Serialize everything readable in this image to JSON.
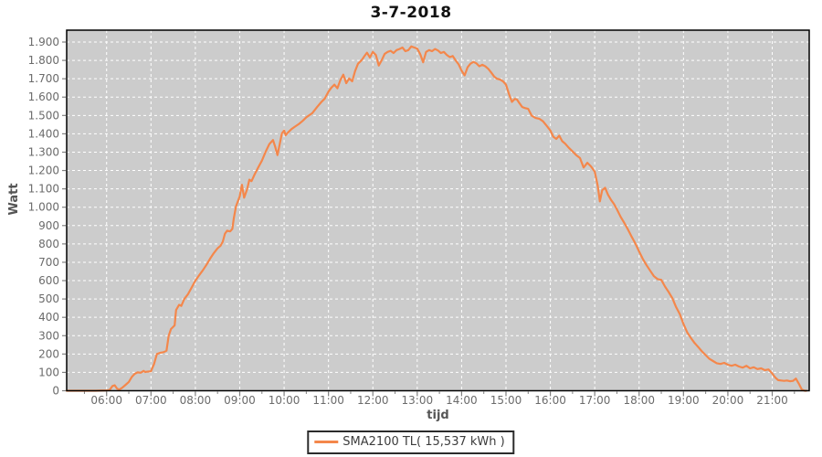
{
  "chart_data": {
    "type": "line",
    "title": "3-7-2018",
    "xlabel": "tijd",
    "ylabel": "Watt",
    "grid": true,
    "grid_style": "white dashed on gray plot background",
    "legend_position": "bottom-center",
    "colors": {
      "plot_background": "#cccccc",
      "grid_line": "#ffffff",
      "series_line": "#f4874b",
      "plot_border": "#000000",
      "tick_mark": "#808080",
      "tick_label": "#6b6b6b"
    },
    "y_max_value": 1900,
    "y_axis_top_headroom": 1965,
    "y_ticks": [
      0,
      100,
      200,
      300,
      400,
      500,
      600,
      700,
      800,
      900,
      1000,
      1100,
      1200,
      1300,
      1400,
      1500,
      1600,
      1700,
      1800,
      1900
    ],
    "y_tick_labels": [
      "0",
      "100",
      "200",
      "300",
      "400",
      "500",
      "600",
      "700",
      "800",
      "900",
      "1.000",
      "1.100",
      "1.200",
      "1.300",
      "1.400",
      "1.500",
      "1.600",
      "1.700",
      "1.800",
      "1.900"
    ],
    "x_tick_minutes": [
      360,
      420,
      480,
      540,
      600,
      660,
      720,
      780,
      840,
      900,
      960,
      1020,
      1080,
      1140,
      1200,
      1260
    ],
    "x_tick_labels": [
      "06:00",
      "07:00",
      "08:00",
      "09:00",
      "10:00",
      "11:00",
      "12:00",
      "13:00",
      "14:00",
      "15:00",
      "16:00",
      "17:00",
      "18:00",
      "19:00",
      "20:00",
      "21:00"
    ],
    "x_range_minutes": [
      306,
      1310
    ],
    "legend": {
      "entries": [
        {
          "label": "SMA2100 TL( 15,537 kWh )",
          "color": "#f4874b"
        }
      ]
    },
    "series": [
      {
        "name": "SMA2100 TL( 15,537 kWh )",
        "color": "#f4874b",
        "points": [
          [
            306,
            0
          ],
          [
            330,
            0
          ],
          [
            345,
            0
          ],
          [
            360,
            2
          ],
          [
            364,
            4
          ],
          [
            368,
            26
          ],
          [
            371,
            30
          ],
          [
            374,
            12
          ],
          [
            377,
            6
          ],
          [
            381,
            16
          ],
          [
            385,
            30
          ],
          [
            390,
            48
          ],
          [
            394,
            75
          ],
          [
            398,
            92
          ],
          [
            402,
            100
          ],
          [
            406,
            98
          ],
          [
            410,
            108
          ],
          [
            412,
            102
          ],
          [
            415,
            104
          ],
          [
            420,
            106
          ],
          [
            424,
            145
          ],
          [
            428,
            200
          ],
          [
            432,
            206
          ],
          [
            437,
            210
          ],
          [
            441,
            218
          ],
          [
            444,
            300
          ],
          [
            447,
            336
          ],
          [
            450,
            348
          ],
          [
            452,
            356
          ],
          [
            454,
            440
          ],
          [
            458,
            468
          ],
          [
            461,
            462
          ],
          [
            465,
            500
          ],
          [
            470,
            526
          ],
          [
            475,
            562
          ],
          [
            480,
            600
          ],
          [
            485,
            628
          ],
          [
            490,
            656
          ],
          [
            495,
            686
          ],
          [
            500,
            720
          ],
          [
            505,
            750
          ],
          [
            510,
            776
          ],
          [
            514,
            790
          ],
          [
            517,
            812
          ],
          [
            520,
            856
          ],
          [
            523,
            872
          ],
          [
            527,
            868
          ],
          [
            530,
            882
          ],
          [
            532,
            940
          ],
          [
            535,
            1005
          ],
          [
            540,
            1060
          ],
          [
            543,
            1122
          ],
          [
            546,
            1052
          ],
          [
            550,
            1098
          ],
          [
            553,
            1150
          ],
          [
            556,
            1142
          ],
          [
            560,
            1178
          ],
          [
            565,
            1216
          ],
          [
            570,
            1254
          ],
          [
            575,
            1302
          ],
          [
            580,
            1344
          ],
          [
            585,
            1366
          ],
          [
            588,
            1328
          ],
          [
            591,
            1284
          ],
          [
            594,
            1342
          ],
          [
            597,
            1402
          ],
          [
            600,
            1418
          ],
          [
            602,
            1392
          ],
          [
            605,
            1406
          ],
          [
            610,
            1426
          ],
          [
            615,
            1440
          ],
          [
            620,
            1454
          ],
          [
            625,
            1470
          ],
          [
            630,
            1490
          ],
          [
            638,
            1512
          ],
          [
            645,
            1548
          ],
          [
            650,
            1572
          ],
          [
            655,
            1592
          ],
          [
            660,
            1630
          ],
          [
            664,
            1652
          ],
          [
            668,
            1668
          ],
          [
            672,
            1648
          ],
          [
            676,
            1692
          ],
          [
            680,
            1722
          ],
          [
            684,
            1676
          ],
          [
            688,
            1702
          ],
          [
            692,
            1686
          ],
          [
            696,
            1742
          ],
          [
            700,
            1782
          ],
          [
            705,
            1802
          ],
          [
            708,
            1820
          ],
          [
            712,
            1842
          ],
          [
            716,
            1816
          ],
          [
            720,
            1846
          ],
          [
            724,
            1830
          ],
          [
            728,
            1772
          ],
          [
            732,
            1802
          ],
          [
            736,
            1836
          ],
          [
            740,
            1846
          ],
          [
            744,
            1852
          ],
          [
            748,
            1840
          ],
          [
            752,
            1856
          ],
          [
            756,
            1862
          ],
          [
            760,
            1870
          ],
          [
            764,
            1850
          ],
          [
            768,
            1856
          ],
          [
            772,
            1876
          ],
          [
            776,
            1870
          ],
          [
            780,
            1864
          ],
          [
            784,
            1834
          ],
          [
            788,
            1790
          ],
          [
            792,
            1846
          ],
          [
            796,
            1856
          ],
          [
            800,
            1850
          ],
          [
            804,
            1862
          ],
          [
            808,
            1854
          ],
          [
            812,
            1840
          ],
          [
            816,
            1846
          ],
          [
            820,
            1830
          ],
          [
            824,
            1818
          ],
          [
            828,
            1824
          ],
          [
            832,
            1800
          ],
          [
            836,
            1778
          ],
          [
            840,
            1744
          ],
          [
            844,
            1718
          ],
          [
            848,
            1762
          ],
          [
            852,
            1782
          ],
          [
            856,
            1792
          ],
          [
            860,
            1784
          ],
          [
            864,
            1768
          ],
          [
            868,
            1776
          ],
          [
            872,
            1768
          ],
          [
            876,
            1754
          ],
          [
            880,
            1734
          ],
          [
            884,
            1712
          ],
          [
            888,
            1700
          ],
          [
            892,
            1696
          ],
          [
            896,
            1686
          ],
          [
            900,
            1668
          ],
          [
            904,
            1618
          ],
          [
            908,
            1574
          ],
          [
            912,
            1590
          ],
          [
            915,
            1586
          ],
          [
            918,
            1568
          ],
          [
            922,
            1546
          ],
          [
            926,
            1540
          ],
          [
            930,
            1536
          ],
          [
            935,
            1498
          ],
          [
            940,
            1486
          ],
          [
            945,
            1482
          ],
          [
            950,
            1468
          ],
          [
            955,
            1444
          ],
          [
            960,
            1418
          ],
          [
            964,
            1384
          ],
          [
            968,
            1372
          ],
          [
            972,
            1390
          ],
          [
            976,
            1360
          ],
          [
            980,
            1346
          ],
          [
            985,
            1324
          ],
          [
            990,
            1304
          ],
          [
            995,
            1284
          ],
          [
            1000,
            1268
          ],
          [
            1005,
            1216
          ],
          [
            1010,
            1242
          ],
          [
            1015,
            1222
          ],
          [
            1020,
            1194
          ],
          [
            1024,
            1118
          ],
          [
            1027,
            1032
          ],
          [
            1030,
            1092
          ],
          [
            1034,
            1106
          ],
          [
            1038,
            1068
          ],
          [
            1042,
            1040
          ],
          [
            1046,
            1018
          ],
          [
            1050,
            988
          ],
          [
            1055,
            948
          ],
          [
            1060,
            914
          ],
          [
            1065,
            878
          ],
          [
            1070,
            838
          ],
          [
            1075,
            802
          ],
          [
            1080,
            758
          ],
          [
            1085,
            718
          ],
          [
            1090,
            684
          ],
          [
            1095,
            654
          ],
          [
            1100,
            624
          ],
          [
            1105,
            608
          ],
          [
            1110,
            604
          ],
          [
            1115,
            568
          ],
          [
            1120,
            538
          ],
          [
            1125,
            504
          ],
          [
            1130,
            456
          ],
          [
            1135,
            418
          ],
          [
            1140,
            364
          ],
          [
            1145,
            318
          ],
          [
            1150,
            288
          ],
          [
            1155,
            260
          ],
          [
            1160,
            238
          ],
          [
            1165,
            214
          ],
          [
            1170,
            194
          ],
          [
            1175,
            174
          ],
          [
            1180,
            162
          ],
          [
            1185,
            150
          ],
          [
            1190,
            146
          ],
          [
            1195,
            152
          ],
          [
            1200,
            142
          ],
          [
            1205,
            136
          ],
          [
            1210,
            142
          ],
          [
            1215,
            132
          ],
          [
            1220,
            126
          ],
          [
            1225,
            136
          ],
          [
            1230,
            122
          ],
          [
            1235,
            128
          ],
          [
            1240,
            118
          ],
          [
            1245,
            122
          ],
          [
            1250,
            112
          ],
          [
            1255,
            116
          ],
          [
            1260,
            94
          ],
          [
            1264,
            72
          ],
          [
            1268,
            58
          ],
          [
            1272,
            56
          ],
          [
            1276,
            54
          ],
          [
            1280,
            56
          ],
          [
            1284,
            52
          ],
          [
            1288,
            54
          ],
          [
            1292,
            66
          ],
          [
            1296,
            38
          ],
          [
            1300,
            6
          ],
          [
            1304,
            0
          ],
          [
            1306,
            0
          ]
        ]
      }
    ]
  }
}
